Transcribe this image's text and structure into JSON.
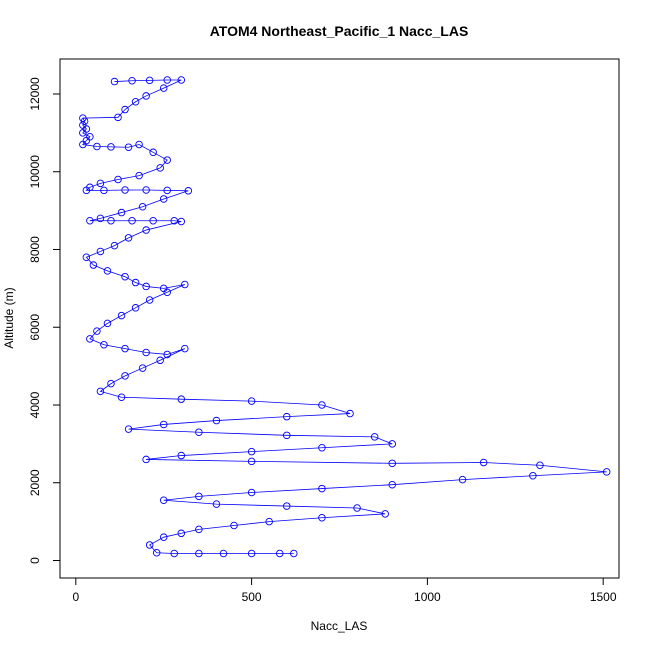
{
  "chart_data": {
    "type": "scatter",
    "title": "ATOM4 Northeast_Pacific_1 Nacc_LAS",
    "xlabel": "Nacc_LAS",
    "ylabel": "Altitude (m)",
    "xlim": [
      -45,
      1545
    ],
    "ylim": [
      -450,
      12900
    ],
    "x_ticks": [
      0,
      500,
      1000,
      1500
    ],
    "y_ticks": [
      0,
      2000,
      4000,
      6000,
      8000,
      10000,
      12000
    ],
    "marker": "open-circle",
    "lines_connect_points": true,
    "grid": false,
    "legend": "none",
    "colors": {
      "series": "#0000ff",
      "axes": "#000000"
    },
    "series": [
      {
        "points": [
          [
            110,
            12320
          ],
          [
            160,
            12340
          ],
          [
            210,
            12350
          ],
          [
            260,
            12360
          ],
          [
            300,
            12360
          ],
          [
            250,
            12150
          ],
          [
            200,
            11950
          ],
          [
            170,
            11800
          ],
          [
            140,
            11600
          ],
          [
            120,
            11400
          ],
          [
            20,
            11380
          ],
          [
            25,
            11300
          ],
          [
            20,
            11200
          ],
          [
            30,
            11100
          ],
          [
            20,
            11000
          ],
          [
            40,
            10900
          ],
          [
            30,
            10800
          ],
          [
            20,
            10700
          ],
          [
            60,
            10650
          ],
          [
            100,
            10640
          ],
          [
            150,
            10630
          ],
          [
            180,
            10700
          ],
          [
            220,
            10500
          ],
          [
            260,
            10300
          ],
          [
            240,
            10100
          ],
          [
            180,
            9900
          ],
          [
            120,
            9800
          ],
          [
            70,
            9700
          ],
          [
            40,
            9600
          ],
          [
            30,
            9520
          ],
          [
            80,
            9520
          ],
          [
            140,
            9530
          ],
          [
            200,
            9530
          ],
          [
            260,
            9520
          ],
          [
            320,
            9510
          ],
          [
            250,
            9300
          ],
          [
            190,
            9100
          ],
          [
            130,
            8950
          ],
          [
            70,
            8800
          ],
          [
            40,
            8740
          ],
          [
            100,
            8740
          ],
          [
            160,
            8740
          ],
          [
            220,
            8740
          ],
          [
            280,
            8740
          ],
          [
            300,
            8720
          ],
          [
            200,
            8500
          ],
          [
            150,
            8300
          ],
          [
            110,
            8100
          ],
          [
            70,
            7950
          ],
          [
            30,
            7800
          ],
          [
            50,
            7600
          ],
          [
            90,
            7450
          ],
          [
            140,
            7300
          ],
          [
            170,
            7150
          ],
          [
            200,
            7050
          ],
          [
            250,
            7000
          ],
          [
            310,
            7100
          ],
          [
            260,
            6900
          ],
          [
            210,
            6700
          ],
          [
            170,
            6500
          ],
          [
            130,
            6300
          ],
          [
            90,
            6100
          ],
          [
            60,
            5900
          ],
          [
            40,
            5700
          ],
          [
            80,
            5550
          ],
          [
            140,
            5450
          ],
          [
            200,
            5350
          ],
          [
            260,
            5300
          ],
          [
            310,
            5450
          ],
          [
            240,
            5150
          ],
          [
            190,
            4950
          ],
          [
            140,
            4750
          ],
          [
            100,
            4550
          ],
          [
            70,
            4350
          ],
          [
            130,
            4200
          ],
          [
            300,
            4150
          ],
          [
            500,
            4100
          ],
          [
            700,
            4000
          ],
          [
            780,
            3780
          ],
          [
            600,
            3700
          ],
          [
            400,
            3600
          ],
          [
            250,
            3500
          ],
          [
            150,
            3380
          ],
          [
            350,
            3300
          ],
          [
            600,
            3220
          ],
          [
            850,
            3180
          ],
          [
            900,
            3000
          ],
          [
            700,
            2900
          ],
          [
            500,
            2800
          ],
          [
            300,
            2700
          ],
          [
            200,
            2600
          ],
          [
            500,
            2550
          ],
          [
            900,
            2500
          ],
          [
            1160,
            2520
          ],
          [
            1320,
            2450
          ],
          [
            1510,
            2280
          ],
          [
            1300,
            2180
          ],
          [
            1100,
            2080
          ],
          [
            900,
            1950
          ],
          [
            700,
            1850
          ],
          [
            500,
            1750
          ],
          [
            350,
            1650
          ],
          [
            250,
            1550
          ],
          [
            400,
            1450
          ],
          [
            600,
            1400
          ],
          [
            800,
            1350
          ],
          [
            880,
            1200
          ],
          [
            700,
            1100
          ],
          [
            550,
            1000
          ],
          [
            450,
            900
          ],
          [
            350,
            800
          ],
          [
            300,
            700
          ],
          [
            250,
            600
          ],
          [
            210,
            400
          ],
          [
            230,
            200
          ],
          [
            280,
            180
          ],
          [
            350,
            180
          ],
          [
            420,
            180
          ],
          [
            500,
            180
          ],
          [
            580,
            180
          ],
          [
            620,
            180
          ]
        ]
      }
    ]
  }
}
